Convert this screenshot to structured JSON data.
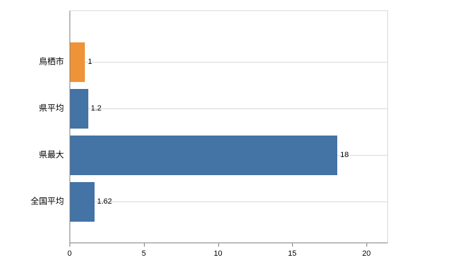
{
  "chart_data": {
    "type": "bar",
    "orientation": "horizontal",
    "title": "",
    "categories": [
      "鳥栖市",
      "県平均",
      "県最大",
      "全国平均"
    ],
    "values": [
      1,
      1.2,
      18,
      1.62
    ],
    "value_labels": [
      "1",
      "1.2",
      "18",
      "1.62"
    ],
    "bar_colors": [
      "#ef9338",
      "#4473a5",
      "#4473a5",
      "#4473a5"
    ],
    "x_ticks": [
      0,
      5,
      10,
      15,
      20
    ],
    "x_tick_labels": [
      "0",
      "5",
      "10",
      "15",
      "20"
    ],
    "xlim": [
      0,
      20
    ],
    "grid": "horizontal-light",
    "legend": "none",
    "background": "#ffffff",
    "axis_color": "#808080",
    "gridline_color": "#d9d9d9"
  }
}
